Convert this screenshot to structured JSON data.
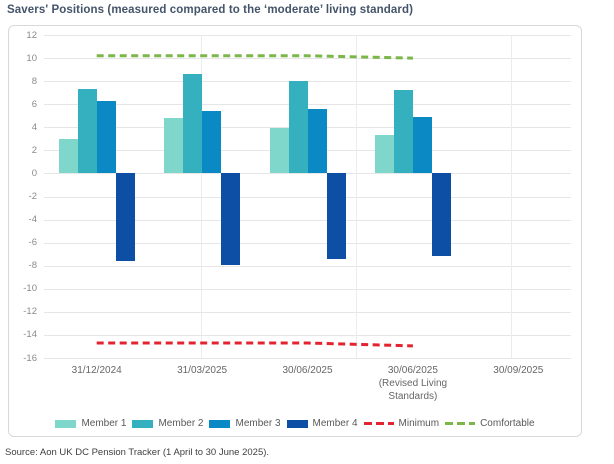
{
  "title": "Savers' Positions (measured compared to the ‘moderate’ living standard)",
  "source_note": "Source: Aon UK DC Pension Tracker (1 April to 30 June 2025).",
  "colors": {
    "title_text": "#44546A",
    "axis_text": "#6E6E6E",
    "gridline": "#E6E6E6",
    "chart_border": "#D8D8D8",
    "member1": "#7FD7CC",
    "member2": "#35B0BF",
    "member3": "#0A89C4",
    "member4": "#0D4FA5",
    "minimum": "#E32330",
    "comfortable": "#7AB648"
  },
  "chart_data": {
    "type": "bar",
    "categories": [
      "31/12/2024",
      "31/03/2025",
      "30/06/2025",
      "30/06/2025 (Revised Living Standards)",
      "30/09/2025"
    ],
    "category_label_lines": [
      [
        "31/12/2024"
      ],
      [
        "31/03/2025"
      ],
      [
        "30/06/2025"
      ],
      [
        "30/06/2025",
        "(Revised Living",
        "Standards)"
      ],
      [
        "30/09/2025"
      ]
    ],
    "series": [
      {
        "name": "Member 1",
        "color": "#7FD7CC",
        "values": [
          3.0,
          4.8,
          3.9,
          3.3,
          null
        ]
      },
      {
        "name": "Member 2",
        "color": "#35B0BF",
        "values": [
          7.3,
          8.6,
          8.0,
          7.2,
          null
        ]
      },
      {
        "name": "Member 3",
        "color": "#0A89C4",
        "values": [
          6.3,
          5.4,
          5.6,
          4.9,
          null
        ]
      },
      {
        "name": "Member 4",
        "color": "#0D4FA5",
        "values": [
          -7.6,
          -7.9,
          -7.4,
          -7.2,
          null
        ]
      }
    ],
    "lines": [
      {
        "name": "Minimum",
        "color": "#E32330",
        "style": "dashed",
        "x_categories": [
          0,
          1,
          2,
          3
        ],
        "values": [
          -14.7,
          -14.7,
          -14.7,
          -14.95
        ]
      },
      {
        "name": "Comfortable",
        "color": "#7AB648",
        "style": "dashed",
        "x_categories": [
          0,
          1,
          2,
          3
        ],
        "values": [
          10.2,
          10.2,
          10.2,
          10.0
        ]
      }
    ],
    "ylim": [
      -16,
      12
    ],
    "ytick_step": 2,
    "grid": true,
    "legend_position": "bottom",
    "legend": [
      "Member 1",
      "Member 2",
      "Member 3",
      "Member 4",
      "Minimum",
      "Comfortable"
    ]
  }
}
